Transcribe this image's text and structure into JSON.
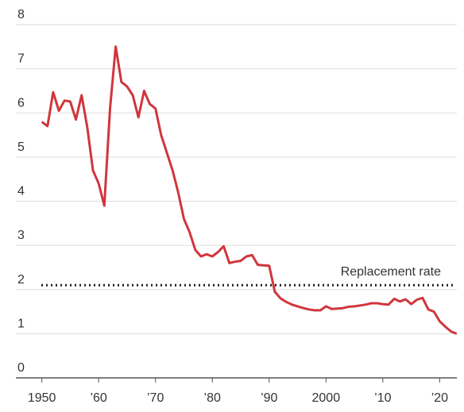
{
  "chart_data": {
    "type": "line",
    "x": [
      1950,
      1951,
      1952,
      1953,
      1954,
      1955,
      1956,
      1957,
      1958,
      1959,
      1960,
      1961,
      1962,
      1963,
      1964,
      1965,
      1966,
      1967,
      1968,
      1969,
      1970,
      1971,
      1972,
      1973,
      1974,
      1975,
      1976,
      1977,
      1978,
      1979,
      1980,
      1981,
      1982,
      1983,
      1984,
      1985,
      1986,
      1987,
      1988,
      1989,
      1990,
      1991,
      1992,
      1993,
      1994,
      1995,
      1996,
      1997,
      1998,
      1999,
      2000,
      2001,
      2002,
      2003,
      2004,
      2005,
      2006,
      2007,
      2008,
      2009,
      2010,
      2011,
      2012,
      2013,
      2014,
      2015,
      2016,
      2017,
      2018,
      2019,
      2020,
      2021,
      2022,
      2023
    ],
    "series": [
      {
        "color": "#d0363d",
        "values": [
          5.8,
          5.7,
          6.47,
          6.05,
          6.28,
          6.26,
          5.85,
          6.4,
          5.68,
          4.7,
          4.4,
          3.9,
          6.1,
          7.5,
          6.7,
          6.6,
          6.4,
          5.9,
          6.5,
          6.2,
          6.1,
          5.5,
          5.1,
          4.7,
          4.2,
          3.6,
          3.3,
          2.9,
          2.75,
          2.8,
          2.75,
          2.85,
          2.98,
          2.6,
          2.63,
          2.65,
          2.75,
          2.78,
          2.56,
          2.55,
          2.54,
          1.95,
          1.8,
          1.72,
          1.66,
          1.62,
          1.58,
          1.55,
          1.53,
          1.53,
          1.62,
          1.56,
          1.57,
          1.58,
          1.61,
          1.62,
          1.64,
          1.66,
          1.69,
          1.69,
          1.67,
          1.66,
          1.79,
          1.73,
          1.78,
          1.67,
          1.77,
          1.81,
          1.55,
          1.5,
          1.28,
          1.16,
          1.05,
          1.0
        ]
      }
    ],
    "reference": {
      "value": 2.1,
      "label": "Replacement rate"
    },
    "xlim": [
      1946,
      2024
    ],
    "xticks": [
      1950,
      {
        "value": 1960,
        "label": "’60"
      },
      {
        "value": 1970,
        "label": "’70"
      },
      {
        "value": 1980,
        "label": "’80"
      },
      {
        "value": 1990,
        "label": "’90"
      },
      2000,
      {
        "value": 2010,
        "label": "’10"
      },
      {
        "value": 2020,
        "label": "’20"
      }
    ],
    "ylim": [
      0,
      8
    ],
    "yticks": [
      0,
      1,
      2,
      3,
      4,
      5,
      6,
      7,
      8
    ],
    "grid": true
  }
}
